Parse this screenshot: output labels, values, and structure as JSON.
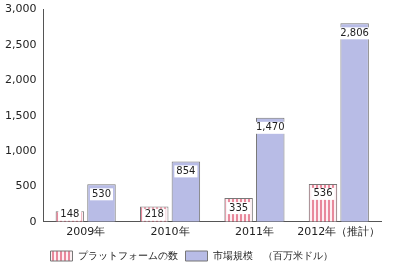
{
  "chart_data": {
    "type": "bar",
    "categories": [
      "2009年",
      "2010年",
      "2011年",
      "2012年（推計）"
    ],
    "series": [
      {
        "name": "プラットフォームの数",
        "color": "#e8899c",
        "values": [
          148,
          218,
          335,
          536
        ]
      },
      {
        "name": "市場規模　（百万米ドル）",
        "color": "#b8bce6",
        "values": [
          530,
          854,
          1470,
          2806
        ],
        "value_labels": [
          "530",
          "854",
          "1,470",
          "2,806"
        ]
      }
    ],
    "ylim": [
      0,
      3000
    ],
    "yticks": [
      0,
      500,
      {
        "value": 1000,
        "label": "1,000"
      },
      {
        "value": 1500,
        "label": "1,500"
      },
      {
        "value": 2000,
        "label": "2,000"
      },
      {
        "value": 2500,
        "label": "2,500"
      },
      {
        "value": 3000,
        "label": "3,000"
      }
    ],
    "grid": false,
    "legend": "bottom",
    "data_labels": true
  }
}
